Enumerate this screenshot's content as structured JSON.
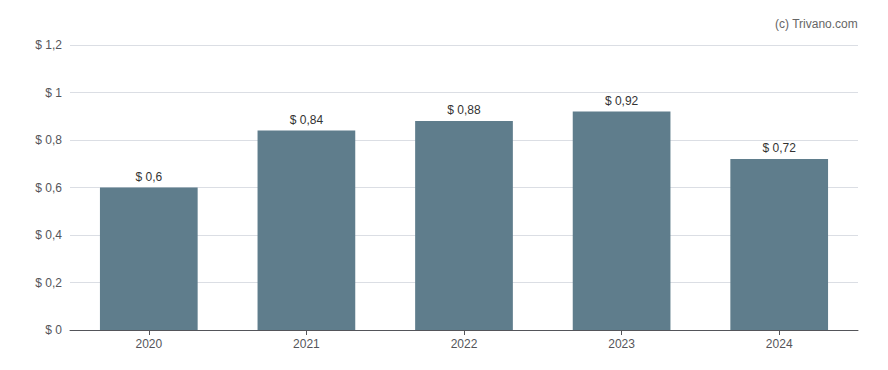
{
  "chart_data": {
    "type": "bar",
    "categories": [
      "2020",
      "2021",
      "2022",
      "2023",
      "2024"
    ],
    "values": [
      0.6,
      0.84,
      0.88,
      0.92,
      0.72
    ],
    "value_labels": [
      "$ 0,6",
      "$ 0,84",
      "$ 0,88",
      "$ 0,92",
      "$ 0,72"
    ],
    "data_labels": true,
    "color": "#5f7d8c",
    "ylim": [
      0,
      1.2
    ],
    "yticks": [
      {
        "value": 0,
        "label": "$ 0"
      },
      {
        "value": 0.2,
        "label": "$ 0,2"
      },
      {
        "value": 0.4,
        "label": "$ 0,4"
      },
      {
        "value": 0.6,
        "label": "$ 0,6"
      },
      {
        "value": 0.8,
        "label": "$ 0,8"
      },
      {
        "value": 1.0,
        "label": "$ 1"
      },
      {
        "value": 1.2,
        "label": "$ 1,2"
      }
    ],
    "grid": true,
    "annotations": [
      "(c) Trivano.com"
    ]
  }
}
